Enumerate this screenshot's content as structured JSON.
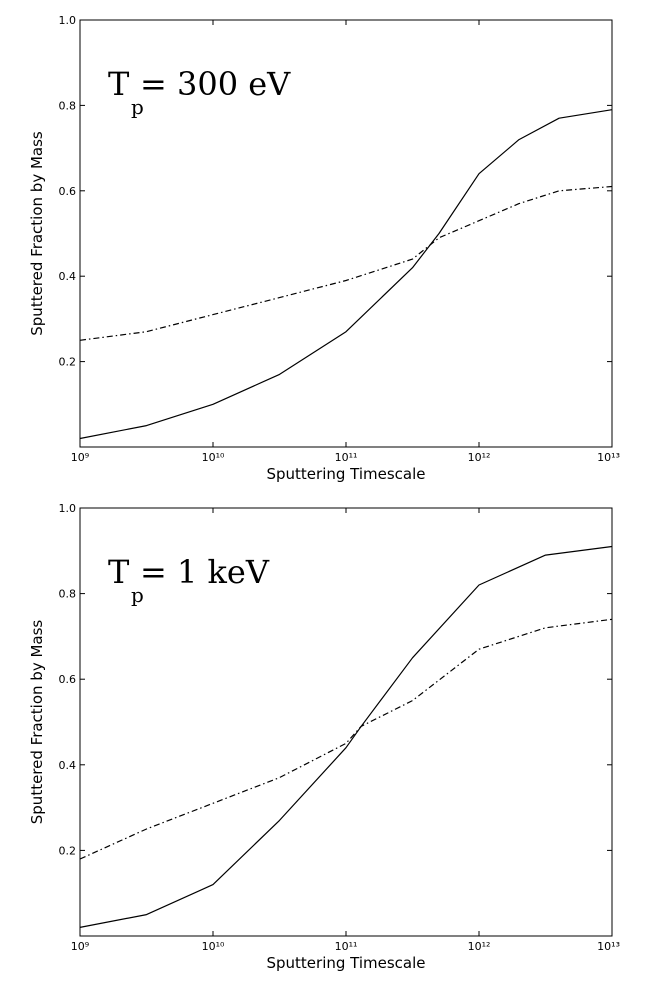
{
  "chart_data": [
    {
      "type": "line",
      "panel_label": {
        "main": "T",
        "sub": "p",
        "rest": " = 300 eV"
      },
      "xlabel": "Sputtering Timescale",
      "ylabel": "Sputtered Fraction by Mass",
      "xscale": "log",
      "xlim": [
        1000000000.0,
        10000000000000.0
      ],
      "ylim": [
        0,
        1.0
      ],
      "x_tick_values": [
        1000000000.0,
        10000000000.0,
        100000000000.0,
        1000000000000.0,
        10000000000000.0
      ],
      "x_tick_labels": [
        "10⁹",
        "10¹⁰",
        "10¹¹",
        "10¹²",
        "10¹³"
      ],
      "y_tick_values": [
        0.2,
        0.4,
        0.6,
        0.8,
        1.0
      ],
      "y_tick_labels": [
        "0.2",
        "0.4",
        "0.6",
        "0.8",
        "1.0"
      ],
      "series": [
        {
          "name": "solid",
          "style": "solid",
          "x": [
            1000000000.0,
            3160000000.0,
            10000000000.0,
            31600000000.0,
            100000000000.0,
            316000000000.0,
            500000000000.0,
            1000000000000.0,
            2000000000000.0,
            4000000000000.0,
            10000000000000.0
          ],
          "y": [
            0.02,
            0.05,
            0.1,
            0.17,
            0.27,
            0.42,
            0.5,
            0.64,
            0.72,
            0.77,
            0.79
          ]
        },
        {
          "name": "dashed",
          "style": "dashed",
          "x": [
            1000000000.0,
            3160000000.0,
            10000000000.0,
            31600000000.0,
            100000000000.0,
            316000000000.0,
            500000000000.0,
            1000000000000.0,
            2000000000000.0,
            4000000000000.0,
            10000000000000.0
          ],
          "y": [
            0.25,
            0.27,
            0.31,
            0.35,
            0.39,
            0.44,
            0.49,
            0.53,
            0.57,
            0.6,
            0.61
          ]
        }
      ]
    },
    {
      "type": "line",
      "panel_label": {
        "main": "T",
        "sub": "p",
        "rest": " = 1 keV"
      },
      "xlabel": "Sputtering Timescale",
      "ylabel": "Sputtered Fraction by Mass",
      "xscale": "log",
      "xlim": [
        1000000000.0,
        10000000000000.0
      ],
      "ylim": [
        0,
        1.0
      ],
      "x_tick_values": [
        1000000000.0,
        10000000000.0,
        100000000000.0,
        1000000000000.0,
        10000000000000.0
      ],
      "x_tick_labels": [
        "10⁹",
        "10¹⁰",
        "10¹¹",
        "10¹²",
        "10¹³"
      ],
      "y_tick_values": [
        0.2,
        0.4,
        0.6,
        0.8,
        1.0
      ],
      "y_tick_labels": [
        "0.2",
        "0.4",
        "0.6",
        "0.8",
        "1.0"
      ],
      "series": [
        {
          "name": "solid",
          "style": "solid",
          "x": [
            1000000000.0,
            3160000000.0,
            10000000000.0,
            31600000000.0,
            100000000000.0,
            130000000000.0,
            316000000000.0,
            1000000000000.0,
            3160000000000.0,
            10000000000000.0
          ],
          "y": [
            0.02,
            0.05,
            0.12,
            0.27,
            0.44,
            0.49,
            0.65,
            0.82,
            0.89,
            0.91
          ],
          "style_note": ""
        },
        {
          "name": "dashed",
          "style": "dashed",
          "x": [
            1000000000.0,
            3160000000.0,
            10000000000.0,
            31600000000.0,
            100000000000.0,
            130000000000.0,
            316000000000.0,
            1000000000000.0,
            3160000000000.0,
            10000000000000.0
          ],
          "y": [
            0.18,
            0.25,
            0.31,
            0.37,
            0.45,
            0.49,
            0.55,
            0.67,
            0.72,
            0.74
          ]
        }
      ]
    }
  ]
}
